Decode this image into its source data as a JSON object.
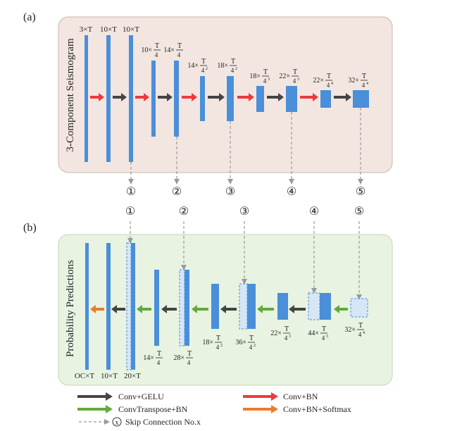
{
  "panel_a": {
    "label": "(a)",
    "side_title": "3-Component Seismogram",
    "bg": "#f3e6e1",
    "top_labels": [
      "3×T",
      "10×T",
      "10×T"
    ],
    "mid_labels": [
      {
        "pre": "10×",
        "num": "T",
        "den": "4",
        "sup": ""
      },
      {
        "pre": "14×",
        "num": "T",
        "den": "4",
        "sup": ""
      },
      {
        "pre": "14×",
        "num": "T",
        "den": "4",
        "sup": "2"
      },
      {
        "pre": "18×",
        "num": "T",
        "den": "4",
        "sup": "2"
      },
      {
        "pre": "18×",
        "num": "T",
        "den": "4",
        "sup": "3"
      },
      {
        "pre": "22×",
        "num": "T",
        "den": "4",
        "sup": "3"
      },
      {
        "pre": "22×",
        "num": "T",
        "den": "4",
        "sup": "4"
      },
      {
        "pre": "32×",
        "num": "T",
        "den": "4",
        "sup": "4"
      }
    ],
    "skip_ids": [
      "①",
      "②",
      "③",
      "④",
      "⑤"
    ]
  },
  "panel_b": {
    "label": "(b)",
    "side_title": "Probability Predictions",
    "bg": "#e8f3e2",
    "skip_ids": [
      "①",
      "②",
      "③",
      "④",
      "⑤"
    ],
    "bottom_labels": [
      "OC×T",
      "10×T",
      "20×T"
    ],
    "mid_labels": [
      {
        "pre": "14×",
        "num": "T",
        "den": "4",
        "sup": ""
      },
      {
        "pre": "28×",
        "num": "T",
        "den": "4",
        "sup": ""
      },
      {
        "pre": "18×",
        "num": "T",
        "den": "4",
        "sup": "2"
      },
      {
        "pre": "36×",
        "num": "T",
        "den": "4",
        "sup": "2"
      },
      {
        "pre": "22×",
        "num": "T",
        "den": "4",
        "sup": "3"
      },
      {
        "pre": "44×",
        "num": "T",
        "den": "4",
        "sup": "3"
      },
      {
        "pre": "32×",
        "num": "T",
        "den": "4",
        "sup": "4"
      }
    ]
  },
  "legend": {
    "conv_gelu": "Conv+GELU",
    "conv_bn": "Conv+BN",
    "convtranspose_bn": "ConvTranspose+BN",
    "conv_bn_softmax": "Conv+BN+Softmax",
    "skip_symbol": "x",
    "skip_connection": "Skip Connection No.x"
  },
  "colors": {
    "block": "#4a8fd8",
    "block_edge": "#3b78c2",
    "skip_block": "#d6e6f7",
    "gelu_arrow": "#444444",
    "bn_arrow": "#f0383a",
    "transpose_arrow": "#62ab3b",
    "softmax_arrow": "#ee7a2e",
    "skip_line": "#999999"
  }
}
